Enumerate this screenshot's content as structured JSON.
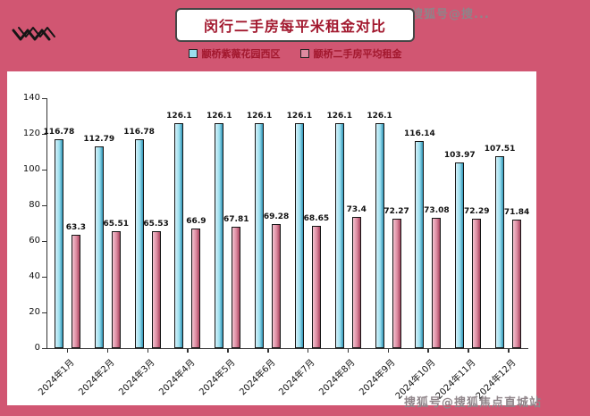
{
  "title": "闵行二手房每平米租金对比",
  "watermarks": {
    "top": "搜狐号@搜...",
    "bottom": "搜狐号@搜狐焦点直城站"
  },
  "colors": {
    "background": "#d15672",
    "title_text": "#a2182e",
    "series1_light": "#d4f1f9",
    "series1_mid": "#9adeee",
    "series1_dark": "#2e93b5",
    "series2_light": "#f2c3d0",
    "series2_mid": "#dd8aa0",
    "series2_dark": "#a84560",
    "axis": "#333333",
    "watermark": "#8f8489"
  },
  "legend": [
    {
      "label": "颛桥紫薇花园西区",
      "swatch": "#9adeee"
    },
    {
      "label": "颛桥二手房平均租金",
      "swatch": "#dd8aa0"
    }
  ],
  "chart_data": {
    "type": "bar",
    "title": "闵行二手房每平米租金对比",
    "categories": [
      "2024年1月",
      "2024年2月",
      "2024年3月",
      "2024年4月",
      "2024年5月",
      "2024年6月",
      "2024年7月",
      "2024年8月",
      "2024年9月",
      "2024年10月",
      "2024年11月",
      "2024年12月"
    ],
    "series": [
      {
        "name": "颛桥紫薇花园西区",
        "values": [
          116.78,
          112.79,
          116.78,
          126.1,
          126.1,
          126.1,
          126.1,
          126.1,
          126.1,
          116.14,
          103.97,
          107.51
        ]
      },
      {
        "name": "颛桥二手房平均租金",
        "values": [
          63.3,
          65.51,
          65.53,
          66.9,
          67.81,
          69.28,
          68.65,
          73.4,
          72.27,
          73.08,
          72.29,
          71.84
        ]
      }
    ],
    "ylim": [
      0,
      140
    ],
    "yticks": [
      0,
      20,
      40,
      60,
      80,
      100,
      120,
      140
    ],
    "grid": false,
    "legend_position": "top",
    "xlabel": "",
    "ylabel": ""
  }
}
